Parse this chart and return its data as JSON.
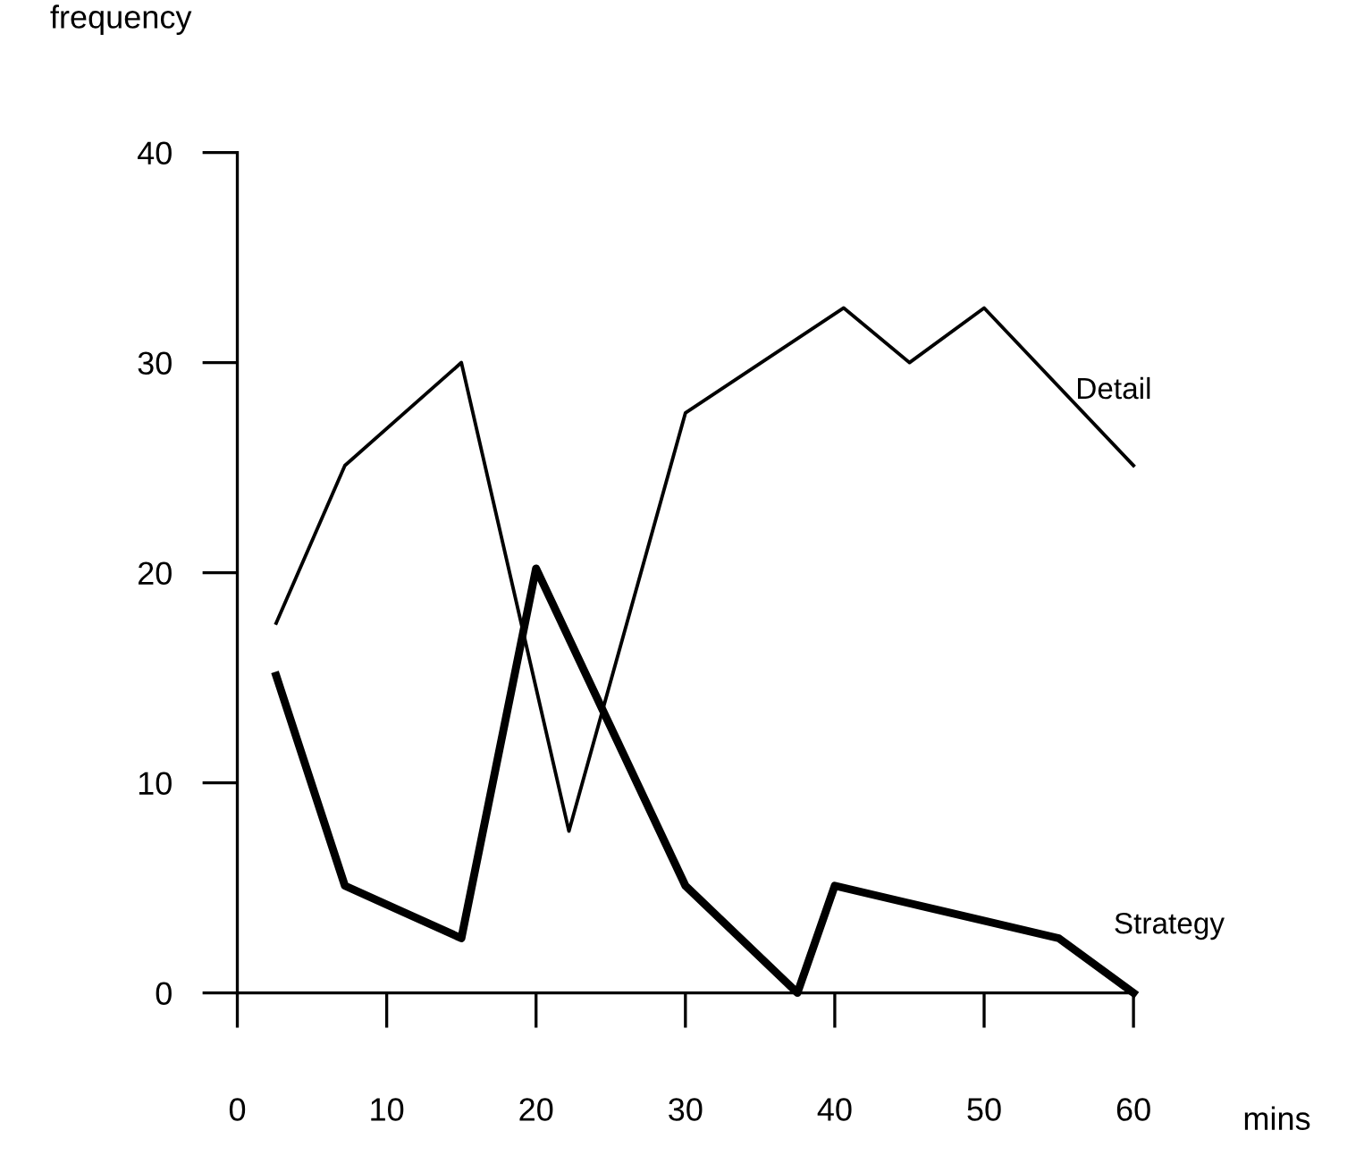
{
  "chart_data": {
    "type": "line",
    "xlabel": "mins",
    "ylabel": "frequency",
    "xlim": [
      0,
      60
    ],
    "xticks": [
      0,
      10,
      20,
      30,
      40,
      50,
      60
    ],
    "ylim": [
      0,
      40
    ],
    "yticks": [
      0,
      10,
      20,
      30,
      40
    ],
    "grid": false,
    "legend": false,
    "marker": "none",
    "line_style": "solid",
    "series": [
      {
        "name": "Detail",
        "color": "#000000",
        "x": [
          2.6,
          7.2,
          15,
          22.2,
          30,
          40.6,
          45,
          50,
          60
        ],
        "values": [
          17.6,
          25.1,
          30,
          7.7,
          27.6,
          32.6,
          30,
          32.6,
          25.1
        ]
      },
      {
        "name": "Strategy",
        "color": "#000000",
        "x": [
          2.6,
          7.2,
          15,
          20,
          30,
          37.5,
          40,
          55,
          60
        ],
        "values": [
          15.1,
          5.1,
          2.6,
          20.2,
          5.1,
          0,
          5.1,
          2.6,
          0
        ]
      }
    ]
  }
}
